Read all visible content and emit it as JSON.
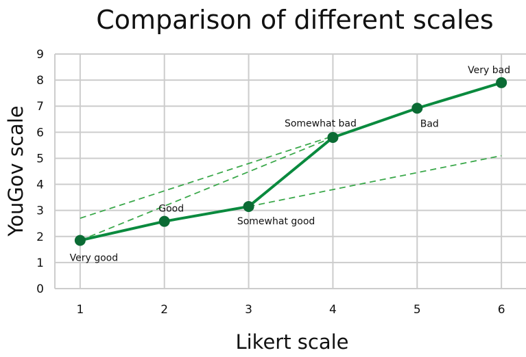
{
  "chart_data": {
    "type": "line",
    "title": "Comparison of different scales",
    "xlabel": "Likert scale",
    "ylabel": "YouGov scale",
    "xlim": [
      0.7,
      6.3
    ],
    "ylim": [
      0,
      9
    ],
    "x_ticks": [
      "1",
      "2",
      "3",
      "4",
      "5",
      "6"
    ],
    "y_ticks": [
      "0",
      "1",
      "2",
      "3",
      "4",
      "5",
      "6",
      "7",
      "8",
      "9"
    ],
    "grid": true,
    "series": [
      {
        "x": [
          1,
          2,
          3,
          4,
          5,
          6
        ],
        "y": [
          1.85,
          2.58,
          3.15,
          5.8,
          6.92,
          7.9
        ],
        "point_labels": [
          "Very good",
          "Good",
          "Somewhat good",
          "Somewhat bad",
          "Bad",
          "Very bad"
        ],
        "color": "#0a8a3e",
        "marker_color": "#0b6b34"
      }
    ],
    "reference_lines": [
      {
        "x": [
          1,
          4
        ],
        "y": [
          1.85,
          5.8
        ],
        "style": "dashed",
        "color": "#3aa84a"
      },
      {
        "x": [
          1,
          4
        ],
        "y": [
          2.7,
          5.85
        ],
        "style": "dashed",
        "color": "#3aa84a"
      },
      {
        "x": [
          3,
          6
        ],
        "y": [
          3.15,
          5.1
        ],
        "style": "dashed",
        "color": "#3aa84a"
      }
    ]
  }
}
